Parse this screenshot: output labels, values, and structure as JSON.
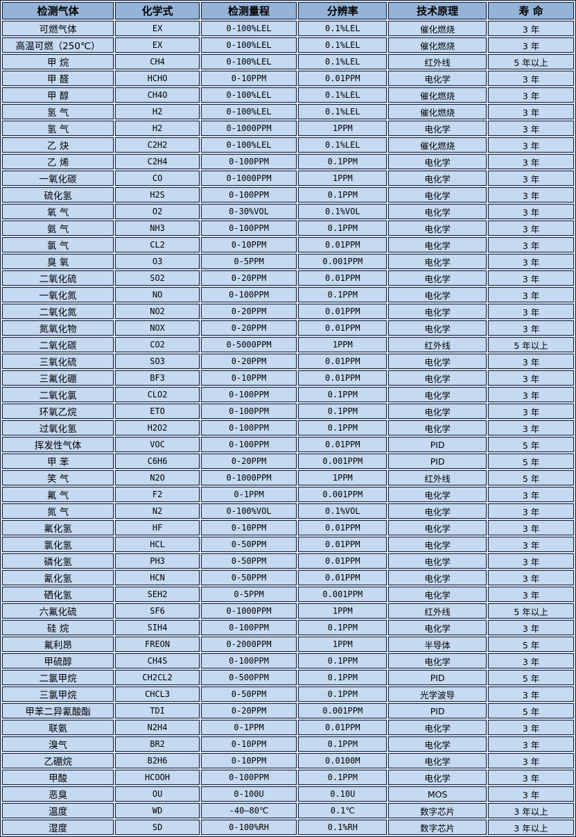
{
  "table": {
    "title_semantic": "gas-detector-sensor-specifications",
    "headers": [
      "检测气体",
      "化学式",
      "检测量程",
      "分辨率",
      "技术原理",
      "寿 命"
    ],
    "column_keys": [
      "gas-name",
      "chemical-formula",
      "detection-range",
      "resolution",
      "technology-principle",
      "lifespan"
    ],
    "rows": [
      [
        "可燃气体",
        "EX",
        "0-100%LEL",
        "0.1%LEL",
        "催化燃烧",
        "3 年"
      ],
      [
        "高温可燃（250℃）",
        "EX",
        "0-100%LEL",
        "0.1%LEL",
        "催化燃烧",
        "3 年"
      ],
      [
        "甲 烷",
        "CH4",
        "0-100%LEL",
        "0.1%LEL",
        "红外线",
        "5 年以上"
      ],
      [
        "甲 醛",
        "HCHO",
        "0-10PPM",
        "0.01PPM",
        "电化学",
        "3 年"
      ],
      [
        "甲 醇",
        "CH4O",
        "0-100%LEL",
        "0.1%LEL",
        "催化燃烧",
        "3 年"
      ],
      [
        "氢 气",
        "H2",
        "0-100%LEL",
        "0.1%LEL",
        "催化燃烧",
        "3 年"
      ],
      [
        "氢 气",
        "H2",
        "0-1000PPM",
        "1PPM",
        "电化学",
        "3 年"
      ],
      [
        "乙 炔",
        "C2H2",
        "0-100%LEL",
        "0.1%LEL",
        "催化燃烧",
        "3 年"
      ],
      [
        "乙 烯",
        "C2H4",
        "0-100PPM",
        "0.1PPM",
        "电化学",
        "3 年"
      ],
      [
        "一氧化碳",
        "CO",
        "0-1000PPM",
        "1PPM",
        "电化学",
        "3 年"
      ],
      [
        "硫化氢",
        "H2S",
        "0-100PPM",
        "0.1PPM",
        "电化学",
        "3 年"
      ],
      [
        "氧 气",
        "O2",
        "0-30%VOL",
        "0.1%VOL",
        "电化学",
        "3 年"
      ],
      [
        "氨 气",
        "NH3",
        "0-100PPM",
        "0.1PPM",
        "电化学",
        "3 年"
      ],
      [
        "氯 气",
        "CL2",
        "0-10PPM",
        "0.01PPM",
        "电化学",
        "3 年"
      ],
      [
        "臭 氧",
        "O3",
        "0-5PPM",
        "0.001PPM",
        "电化学",
        "3 年"
      ],
      [
        "二氧化硫",
        "SO2",
        "0-20PPM",
        "0.01PPM",
        "电化学",
        "3 年"
      ],
      [
        "一氧化氮",
        "NO",
        "0-100PPM",
        "0.1PPM",
        "电化学",
        "3 年"
      ],
      [
        "二氧化氮",
        "NO2",
        "0-20PPM",
        "0.01PPM",
        "电化学",
        "3 年"
      ],
      [
        "氮氧化物",
        "NOX",
        "0-20PPM",
        "0.01PPM",
        "电化学",
        "3 年"
      ],
      [
        "二氧化碳",
        "CO2",
        "0-5000PPM",
        "1PPM",
        "红外线",
        "5 年以上"
      ],
      [
        "三氧化硫",
        "SO3",
        "0-20PPM",
        "0.01PPM",
        "电化学",
        "3 年"
      ],
      [
        "三氟化硼",
        "BF3",
        "0-10PPM",
        "0.01PPM",
        "电化学",
        "3 年"
      ],
      [
        "二氧化氯",
        "CLO2",
        "0-100PPM",
        "0.1PPM",
        "电化学",
        "3 年"
      ],
      [
        "环氧乙烷",
        "ETO",
        "0-100PPM",
        "0.1PPM",
        "电化学",
        "3 年"
      ],
      [
        "过氧化氢",
        "H2O2",
        "0-100PPM",
        "0.1PPM",
        "电化学",
        "3 年"
      ],
      [
        "挥发性气体",
        "VOC",
        "0-100PPM",
        "0.01PPM",
        "PID",
        "5 年"
      ],
      [
        "甲 苯",
        "C6H6",
        "0-20PPM",
        "0.001PPM",
        "PID",
        "5 年"
      ],
      [
        "笑 气",
        "N2O",
        "0-1000PPM",
        "1PPM",
        "红外线",
        "5 年"
      ],
      [
        "氟 气",
        "F2",
        "0-1PPM",
        "0.001PPM",
        "电化学",
        "3 年"
      ],
      [
        "氮 气",
        "N2",
        "0-100%VOL",
        "0.1%VOL",
        "电化学",
        "3 年"
      ],
      [
        "氟化氢",
        "HF",
        "0-10PPM",
        "0.01PPM",
        "电化学",
        "3 年"
      ],
      [
        "氯化氢",
        "HCL",
        "0-50PPM",
        "0.01PPM",
        "电化学",
        "3 年"
      ],
      [
        "磷化氢",
        "PH3",
        "0-50PPM",
        "0.01PPM",
        "电化学",
        "3 年"
      ],
      [
        "氰化氢",
        "HCN",
        "0-50PPM",
        "0.01PPM",
        "电化学",
        "3 年"
      ],
      [
        "硒化氢",
        "SEH2",
        "0-5PPM",
        "0.001PPM",
        "电化学",
        "3 年"
      ],
      [
        "六氟化硫",
        "SF6",
        "0-1000PPM",
        "1PPM",
        "红外线",
        "5 年以上"
      ],
      [
        "硅 烷",
        "SIH4",
        "0-100PPM",
        "0.1PPM",
        "电化学",
        "3 年"
      ],
      [
        "氟利昂",
        "FREON",
        "0-2000PPM",
        "1PPM",
        "半导体",
        "5 年"
      ],
      [
        "甲硫醇",
        "CH4S",
        "0-100PPM",
        "0.1PPM",
        "电化学",
        "3 年"
      ],
      [
        "二氯甲烷",
        "CH2CL2",
        "0-500PPM",
        "0.1PPM",
        "PID",
        "5 年"
      ],
      [
        "三氯甲烷",
        "CHCL3",
        "0-50PPM",
        "0.1PPM",
        "光学波导",
        "3 年"
      ],
      [
        "甲苯二异氰酸酯",
        "TDI",
        "0-20PPM",
        "0.001PPM",
        "PID",
        "5 年"
      ],
      [
        "联氨",
        "N2H4",
        "0-1PPM",
        "0.01PPM",
        "电化学",
        "3 年"
      ],
      [
        "溴气",
        "BR2",
        "0-10PPM",
        "0.1PPM",
        "电化学",
        "3 年"
      ],
      [
        "乙硼烷",
        "B2H6",
        "0-10PPM",
        "0.0100M",
        "电化学",
        "3 年"
      ],
      [
        "甲酸",
        "HCOOH",
        "0-100PPM",
        "0.1PPM",
        "电化学",
        "3 年"
      ],
      [
        "恶臭",
        "OU",
        "0-100U",
        "0.10U",
        "MOS",
        "3 年"
      ],
      [
        "温度",
        "WD",
        "-40—80℃",
        "0.1℃",
        "数字芯片",
        "3 年以上"
      ],
      [
        "湿度",
        "SD",
        "0-100%RH",
        "0.1%RH",
        "数字芯片",
        "3 年以上"
      ]
    ],
    "colors": {
      "header_bg": "#95b3d7",
      "row_bg": "#c5d9f1",
      "grid_line": "#10192e",
      "cell_gap": "#d9e5f5",
      "text": "#000000"
    }
  }
}
